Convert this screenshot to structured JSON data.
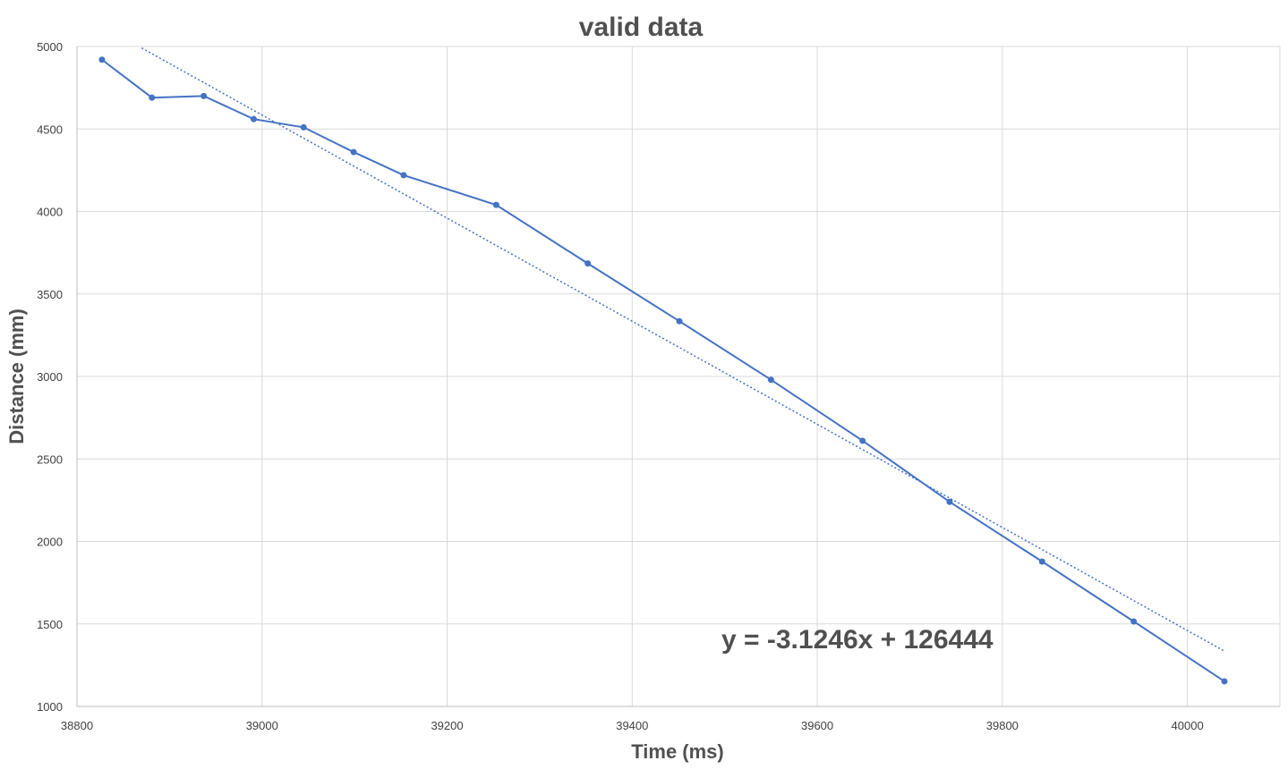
{
  "chart_data": {
    "type": "line",
    "title": "valid data",
    "xlabel": "Time (ms)",
    "ylabel": "Distance (mm)",
    "xlim": [
      38800,
      40000
    ],
    "xlim_display": [
      38800,
      40100
    ],
    "ylim": [
      1000,
      5000
    ],
    "xticks": [
      38800,
      39000,
      39200,
      39400,
      39600,
      39800,
      40000
    ],
    "yticks": [
      1000,
      1500,
      2000,
      2500,
      3000,
      3500,
      4000,
      4500,
      5000
    ],
    "grid": true,
    "legend": "none",
    "series": [
      {
        "x": [
          38827,
          38881,
          38937,
          38991,
          39045,
          39099,
          39153,
          39253,
          39352,
          39451,
          39550,
          39649,
          39743,
          39843,
          39942,
          40040
        ],
        "y": [
          4920,
          4690,
          4700,
          4560,
          4510,
          4360,
          4220,
          4040,
          3685,
          3335,
          2980,
          2610,
          2240,
          1878,
          1515,
          1152
        ]
      }
    ],
    "trendline": {
      "type": "linear",
      "slope": -3.1246,
      "intercept": 126444,
      "x_range": [
        38870,
        40040
      ],
      "style": "dotted"
    },
    "annotations": [
      {
        "text": "y = -3.1246x + 126444"
      }
    ],
    "colors": {
      "series": "#4472C4",
      "grid": "#D9D9D9",
      "axis": "#BFBFBF",
      "text": "#595959"
    }
  }
}
